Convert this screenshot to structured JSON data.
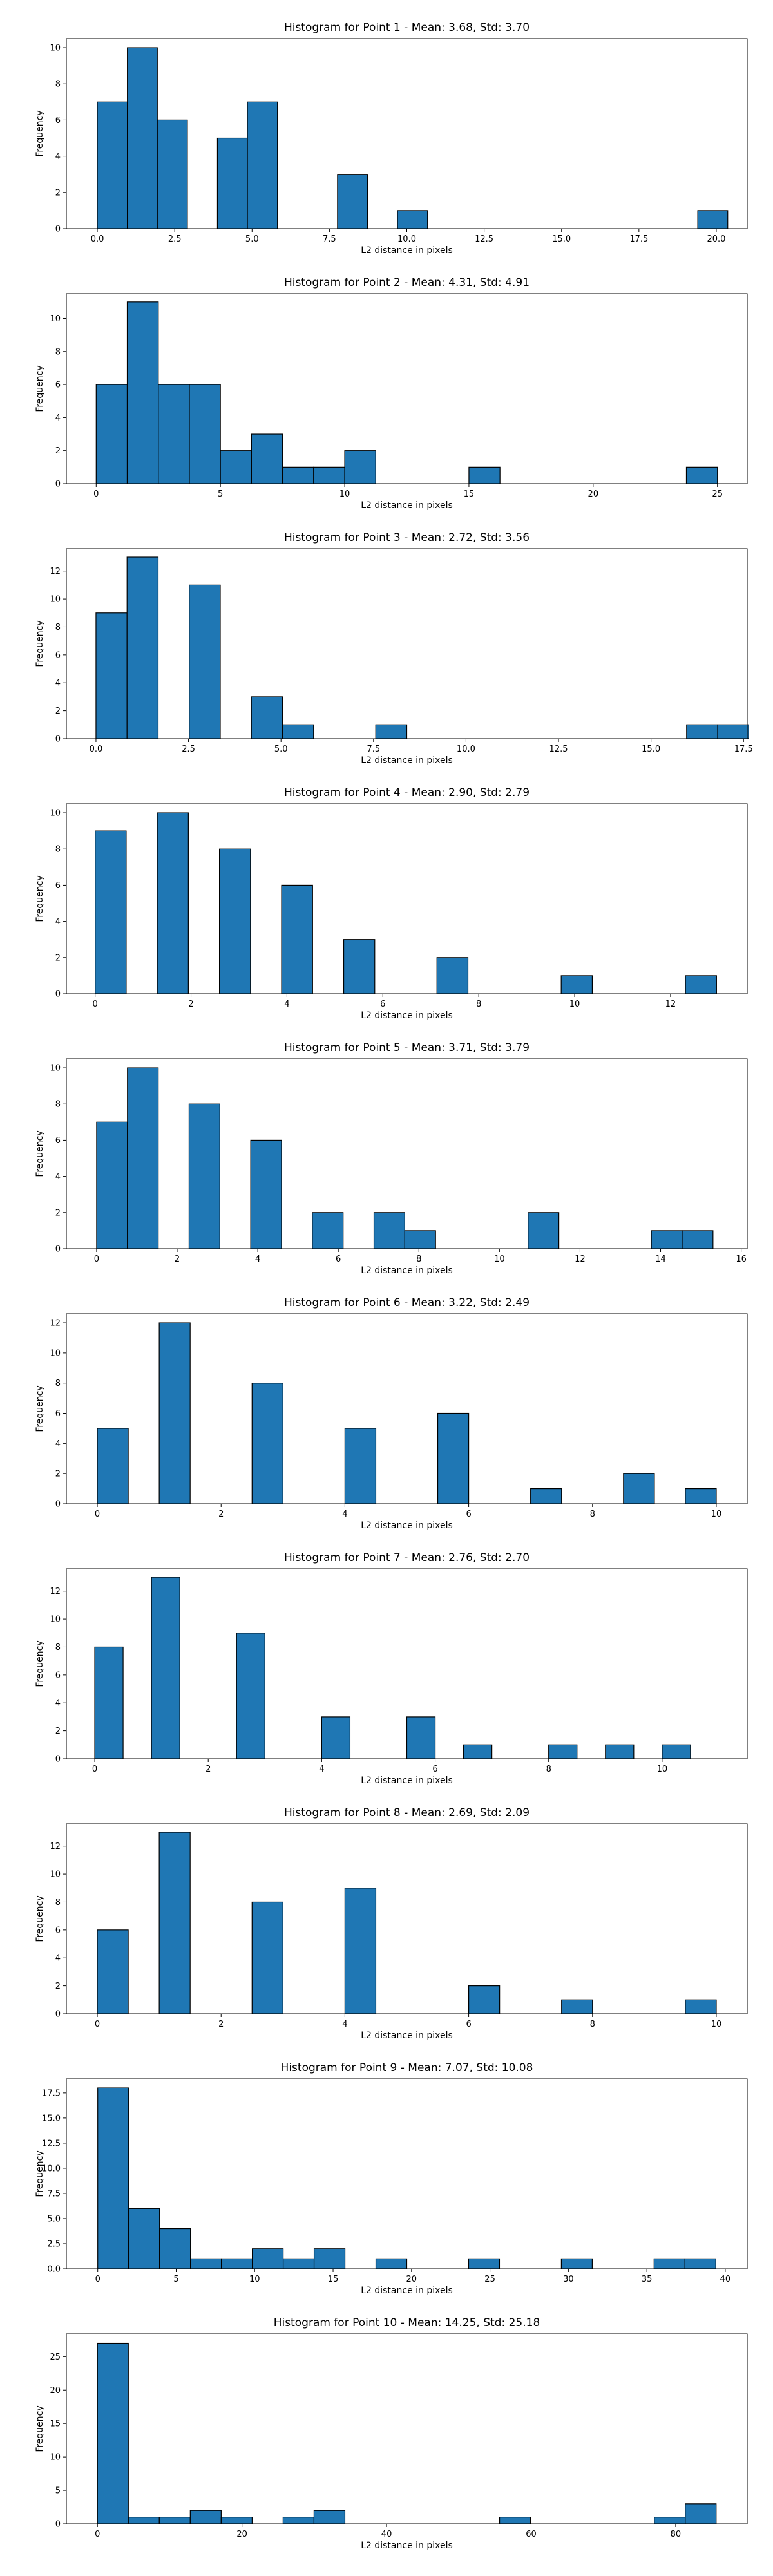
{
  "chart_data": [
    {
      "type": "bar",
      "title": "Histogram for Point 1 - Mean: 3.68, Std: 3.70",
      "xlabel": "L2 distance in pixels",
      "ylabel": "Frequency",
      "bin_start": 0,
      "bin_width": 0.97,
      "counts": [
        7,
        10,
        6,
        0,
        5,
        7,
        0,
        0,
        3,
        0,
        1,
        0,
        0,
        0,
        0,
        0,
        0,
        0,
        0,
        0,
        1
      ],
      "xlim": [
        -1,
        21
      ],
      "ylim": [
        0,
        10.5
      ],
      "xticks": [
        {
          "v": 0,
          "label": "0.0"
        },
        {
          "v": 2.5,
          "label": "2.5"
        },
        {
          "v": 5,
          "label": "5.0"
        },
        {
          "v": 7.5,
          "label": "7.5"
        },
        {
          "v": 10,
          "label": "10.0"
        },
        {
          "v": 12.5,
          "label": "12.5"
        },
        {
          "v": 15,
          "label": "15.0"
        },
        {
          "v": 17.5,
          "label": "17.5"
        },
        {
          "v": 20,
          "label": "20.0"
        }
      ],
      "yticks": [
        {
          "v": 0,
          "label": "0"
        },
        {
          "v": 2,
          "label": "2"
        },
        {
          "v": 4,
          "label": "4"
        },
        {
          "v": 6,
          "label": "6"
        },
        {
          "v": 8,
          "label": "8"
        },
        {
          "v": 10,
          "label": "10"
        }
      ]
    },
    {
      "type": "bar",
      "title": "Histogram for Point 2 - Mean: 4.31, Std: 4.91",
      "xlabel": "L2 distance in pixels",
      "ylabel": "Frequency",
      "bin_start": 0,
      "bin_width": 1.25,
      "counts": [
        6,
        11,
        6,
        6,
        2,
        3,
        1,
        1,
        2,
        0,
        0,
        0,
        1,
        0,
        0,
        0,
        0,
        0,
        0,
        1
      ],
      "xlim": [
        -1.2,
        26.2
      ],
      "ylim": [
        0,
        11.5
      ],
      "xticks": [
        {
          "v": 0,
          "label": "0"
        },
        {
          "v": 5,
          "label": "5"
        },
        {
          "v": 10,
          "label": "10"
        },
        {
          "v": 15,
          "label": "15"
        },
        {
          "v": 20,
          "label": "20"
        },
        {
          "v": 25,
          "label": "25"
        }
      ],
      "yticks": [
        {
          "v": 0,
          "label": "0"
        },
        {
          "v": 2,
          "label": "2"
        },
        {
          "v": 4,
          "label": "4"
        },
        {
          "v": 6,
          "label": "6"
        },
        {
          "v": 8,
          "label": "8"
        },
        {
          "v": 10,
          "label": "10"
        }
      ]
    },
    {
      "type": "bar",
      "title": "Histogram for Point 3 - Mean: 2.72, Std: 3.56",
      "xlabel": "L2 distance in pixels",
      "ylabel": "Frequency",
      "bin_start": 0,
      "bin_width": 0.84,
      "counts": [
        9,
        13,
        0,
        11,
        0,
        3,
        1,
        0,
        0,
        1,
        0,
        0,
        0,
        0,
        0,
        0,
        0,
        0,
        0,
        1,
        1
      ],
      "xlim": [
        -0.8,
        17.6
      ],
      "ylim": [
        0,
        13.6
      ],
      "xticks": [
        {
          "v": 0,
          "label": "0.0"
        },
        {
          "v": 2.5,
          "label": "2.5"
        },
        {
          "v": 5,
          "label": "5.0"
        },
        {
          "v": 7.5,
          "label": "7.5"
        },
        {
          "v": 10,
          "label": "10.0"
        },
        {
          "v": 12.5,
          "label": "12.5"
        },
        {
          "v": 15,
          "label": "15.0"
        },
        {
          "v": 17.5,
          "label": "17.5"
        }
      ],
      "yticks": [
        {
          "v": 0,
          "label": "0"
        },
        {
          "v": 2,
          "label": "2"
        },
        {
          "v": 4,
          "label": "4"
        },
        {
          "v": 6,
          "label": "6"
        },
        {
          "v": 8,
          "label": "8"
        },
        {
          "v": 10,
          "label": "10"
        },
        {
          "v": 12,
          "label": "12"
        }
      ]
    },
    {
      "type": "bar",
      "title": "Histogram for Point 4 - Mean: 2.90, Std: 2.79",
      "xlabel": "L2 distance in pixels",
      "ylabel": "Frequency",
      "bin_start": 0,
      "bin_width": 0.648,
      "counts": [
        9,
        0,
        10,
        0,
        8,
        0,
        6,
        0,
        3,
        0,
        0,
        2,
        0,
        0,
        0,
        1,
        0,
        0,
        0,
        1
      ],
      "xlim": [
        -0.6,
        13.6
      ],
      "ylim": [
        0,
        10.5
      ],
      "xticks": [
        {
          "v": 0,
          "label": "0"
        },
        {
          "v": 2,
          "label": "2"
        },
        {
          "v": 4,
          "label": "4"
        },
        {
          "v": 6,
          "label": "6"
        },
        {
          "v": 8,
          "label": "8"
        },
        {
          "v": 10,
          "label": "10"
        },
        {
          "v": 12,
          "label": "12"
        }
      ],
      "yticks": [
        {
          "v": 0,
          "label": "0"
        },
        {
          "v": 2,
          "label": "2"
        },
        {
          "v": 4,
          "label": "4"
        },
        {
          "v": 6,
          "label": "6"
        },
        {
          "v": 8,
          "label": "8"
        },
        {
          "v": 10,
          "label": "10"
        }
      ]
    },
    {
      "type": "bar",
      "title": "Histogram for Point 5 - Mean: 3.71, Std: 3.79",
      "xlabel": "L2 distance in pixels",
      "ylabel": "Frequency",
      "bin_start": 0,
      "bin_width": 0.765,
      "counts": [
        7,
        10,
        0,
        8,
        0,
        6,
        0,
        2,
        0,
        2,
        1,
        0,
        0,
        0,
        2,
        0,
        0,
        0,
        1,
        1
      ],
      "xlim": [
        -0.75,
        16.15
      ],
      "ylim": [
        0,
        10.5
      ],
      "xticks": [
        {
          "v": 0,
          "label": "0"
        },
        {
          "v": 2,
          "label": "2"
        },
        {
          "v": 4,
          "label": "4"
        },
        {
          "v": 6,
          "label": "6"
        },
        {
          "v": 8,
          "label": "8"
        },
        {
          "v": 10,
          "label": "10"
        },
        {
          "v": 12,
          "label": "12"
        },
        {
          "v": 14,
          "label": "14"
        },
        {
          "v": 16,
          "label": "16"
        }
      ],
      "yticks": [
        {
          "v": 0,
          "label": "0"
        },
        {
          "v": 2,
          "label": "2"
        },
        {
          "v": 4,
          "label": "4"
        },
        {
          "v": 6,
          "label": "6"
        },
        {
          "v": 8,
          "label": "8"
        },
        {
          "v": 10,
          "label": "10"
        }
      ]
    },
    {
      "type": "bar",
      "title": "Histogram for Point 6 - Mean: 3.22, Std: 2.49",
      "xlabel": "L2 distance in pixels",
      "ylabel": "Frequency",
      "bin_start": 0,
      "bin_width": 0.5,
      "counts": [
        5,
        0,
        12,
        0,
        0,
        8,
        0,
        0,
        5,
        0,
        0,
        6,
        0,
        0,
        1,
        0,
        0,
        2,
        0,
        1
      ],
      "xlim": [
        -0.5,
        10.5
      ],
      "ylim": [
        0,
        12.6
      ],
      "xticks": [
        {
          "v": 0,
          "label": "0"
        },
        {
          "v": 2,
          "label": "2"
        },
        {
          "v": 4,
          "label": "4"
        },
        {
          "v": 6,
          "label": "6"
        },
        {
          "v": 8,
          "label": "8"
        },
        {
          "v": 10,
          "label": "10"
        }
      ],
      "yticks": [
        {
          "v": 0,
          "label": "0"
        },
        {
          "v": 2,
          "label": "2"
        },
        {
          "v": 4,
          "label": "4"
        },
        {
          "v": 6,
          "label": "6"
        },
        {
          "v": 8,
          "label": "8"
        },
        {
          "v": 10,
          "label": "10"
        },
        {
          "v": 12,
          "label": "12"
        }
      ]
    },
    {
      "type": "bar",
      "title": "Histogram for Point 7 - Mean: 2.76, Std: 2.70",
      "xlabel": "L2 distance in pixels",
      "ylabel": "Frequency",
      "bin_start": 0,
      "bin_width": 0.5,
      "counts": [
        8,
        0,
        13,
        0,
        0,
        9,
        0,
        0,
        3,
        0,
        0,
        3,
        0,
        1,
        0,
        0,
        1,
        0,
        1,
        0,
        1
      ],
      "xlim": [
        -0.5,
        11.5
      ],
      "ylim": [
        0,
        13.6
      ],
      "xticks": [
        {
          "v": 0,
          "label": "0"
        },
        {
          "v": 2,
          "label": "2"
        },
        {
          "v": 4,
          "label": "4"
        },
        {
          "v": 6,
          "label": "6"
        },
        {
          "v": 8,
          "label": "8"
        },
        {
          "v": 10,
          "label": "10"
        }
      ],
      "yticks": [
        {
          "v": 0,
          "label": "0"
        },
        {
          "v": 2,
          "label": "2"
        },
        {
          "v": 4,
          "label": "4"
        },
        {
          "v": 6,
          "label": "6"
        },
        {
          "v": 8,
          "label": "8"
        },
        {
          "v": 10,
          "label": "10"
        },
        {
          "v": 12,
          "label": "12"
        }
      ]
    },
    {
      "type": "bar",
      "title": "Histogram for Point 8 - Mean: 2.69, Std: 2.09",
      "xlabel": "L2 distance in pixels",
      "ylabel": "Frequency",
      "bin_start": 0,
      "bin_width": 0.5,
      "counts": [
        6,
        0,
        13,
        0,
        0,
        8,
        0,
        0,
        9,
        0,
        0,
        0,
        2,
        0,
        0,
        1,
        0,
        0,
        0,
        1
      ],
      "xlim": [
        -0.5,
        10.5
      ],
      "ylim": [
        0,
        13.6
      ],
      "xticks": [
        {
          "v": 0,
          "label": "0"
        },
        {
          "v": 2,
          "label": "2"
        },
        {
          "v": 4,
          "label": "4"
        },
        {
          "v": 6,
          "label": "6"
        },
        {
          "v": 8,
          "label": "8"
        },
        {
          "v": 10,
          "label": "10"
        }
      ],
      "yticks": [
        {
          "v": 0,
          "label": "0"
        },
        {
          "v": 2,
          "label": "2"
        },
        {
          "v": 4,
          "label": "4"
        },
        {
          "v": 6,
          "label": "6"
        },
        {
          "v": 8,
          "label": "8"
        },
        {
          "v": 10,
          "label": "10"
        },
        {
          "v": 12,
          "label": "12"
        }
      ]
    },
    {
      "type": "bar",
      "title": "Histogram for Point 9 - Mean: 7.07, Std: 10.08",
      "xlabel": "L2 distance in pixels",
      "ylabel": "Frequency",
      "bin_start": 0,
      "bin_width": 1.97,
      "counts": [
        18,
        6,
        4,
        1,
        1,
        2,
        1,
        2,
        0,
        1,
        0,
        0,
        1,
        0,
        0,
        1,
        0,
        0,
        1,
        1
      ],
      "xlim": [
        -2,
        41.4
      ],
      "ylim": [
        0,
        18.9
      ],
      "xticks": [
        {
          "v": 0,
          "label": "0"
        },
        {
          "v": 5,
          "label": "5"
        },
        {
          "v": 10,
          "label": "10"
        },
        {
          "v": 15,
          "label": "15"
        },
        {
          "v": 20,
          "label": "20"
        },
        {
          "v": 25,
          "label": "25"
        },
        {
          "v": 30,
          "label": "30"
        },
        {
          "v": 35,
          "label": "35"
        },
        {
          "v": 40,
          "label": "40"
        }
      ],
      "yticks": [
        {
          "v": 0,
          "label": "0.0"
        },
        {
          "v": 2.5,
          "label": "2.5"
        },
        {
          "v": 5,
          "label": "5.0"
        },
        {
          "v": 7.5,
          "label": "7.5"
        },
        {
          "v": 10,
          "label": "10.0"
        },
        {
          "v": 12.5,
          "label": "12.5"
        },
        {
          "v": 15,
          "label": "15.0"
        },
        {
          "v": 17.5,
          "label": "17.5"
        }
      ]
    },
    {
      "type": "bar",
      "title": "Histogram for Point 10 - Mean: 14.25, Std: 25.18",
      "xlabel": "L2 distance in pixels",
      "ylabel": "Frequency",
      "bin_start": 0,
      "bin_width": 4.28,
      "counts": [
        27,
        1,
        1,
        2,
        1,
        0,
        1,
        2,
        0,
        0,
        0,
        0,
        0,
        1,
        0,
        0,
        0,
        0,
        1,
        3
      ],
      "xlim": [
        -4.3,
        89.9
      ],
      "ylim": [
        0,
        28.4
      ],
      "xticks": [
        {
          "v": 0,
          "label": "0"
        },
        {
          "v": 20,
          "label": "20"
        },
        {
          "v": 40,
          "label": "40"
        },
        {
          "v": 60,
          "label": "60"
        },
        {
          "v": 80,
          "label": "80"
        }
      ],
      "yticks": [
        {
          "v": 0,
          "label": "0"
        },
        {
          "v": 5,
          "label": "5"
        },
        {
          "v": 10,
          "label": "10"
        },
        {
          "v": 15,
          "label": "15"
        },
        {
          "v": 20,
          "label": "20"
        },
        {
          "v": 25,
          "label": "25"
        }
      ]
    }
  ]
}
